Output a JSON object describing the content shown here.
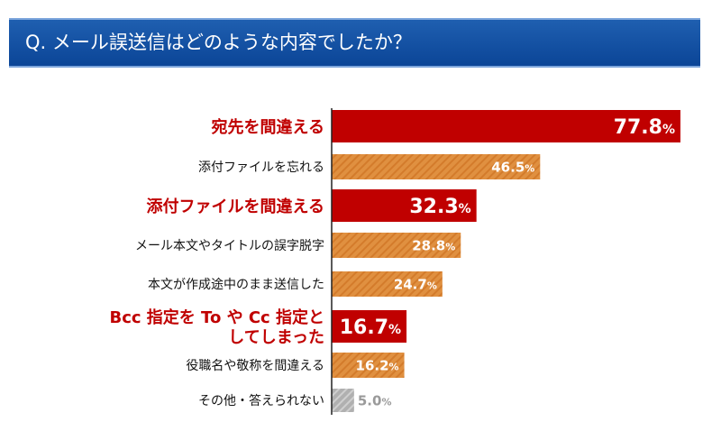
{
  "title": "Q. メール誤送信はどのような内容でしたか？",
  "colors": {
    "highlight": "#c00000",
    "normal_bar": "#e09040",
    "other_bar": "#b0b0b0",
    "title_bg": "#0b4597"
  },
  "chart_data": {
    "type": "bar",
    "orientation": "horizontal",
    "unit": "%",
    "xlim": [
      0,
      100
    ],
    "grid": false,
    "categories": [
      "宛先を間違える",
      "添付ファイルを忘れる",
      "添付ファイルを間違える",
      "メール本文やタイトルの誤字脱字",
      "本文が作成途中のまま送信した",
      "Bcc 指定を To や Cc 指定としてしまった",
      "役職名や敬称を間違える",
      "その他・答えられない"
    ],
    "label_lines": [
      [
        "宛先を間違える"
      ],
      [
        "添付ファイルを忘れる"
      ],
      [
        "添付ファイルを間違える"
      ],
      [
        "メール本文やタイトルの誤字脱字"
      ],
      [
        "本文が作成途中のまま送信した"
      ],
      [
        "Bcc 指定を To や Cc 指定と",
        "してしまった"
      ],
      [
        "役職名や敬称を間違える"
      ],
      [
        "その他・答えられない"
      ]
    ],
    "values": [
      77.8,
      46.5,
      32.3,
      28.8,
      24.7,
      16.7,
      16.2,
      5.0
    ],
    "value_labels": [
      "77.8",
      "46.5",
      "32.3",
      "28.8",
      "24.7",
      "16.7",
      "16.2",
      "5.0"
    ],
    "styles": [
      "highlight",
      "normal",
      "highlight",
      "normal",
      "normal",
      "highlight",
      "normal",
      "other"
    ]
  }
}
